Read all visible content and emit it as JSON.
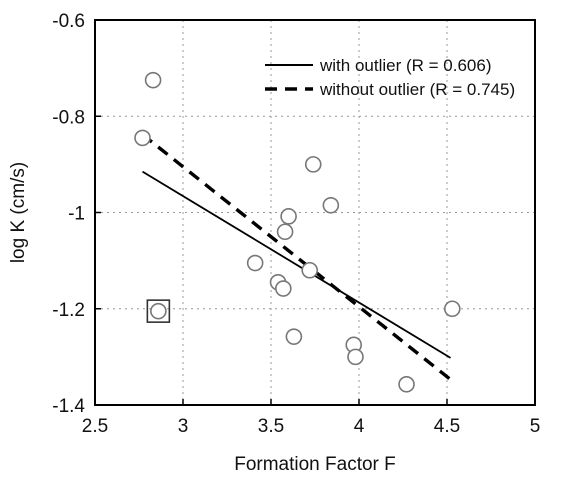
{
  "chart_data": {
    "type": "scatter",
    "xlabel": "Formation Factor F",
    "ylabel": "log K (cm/s)",
    "xlim": [
      2.5,
      5
    ],
    "ylim": [
      -1.4,
      -0.6
    ],
    "xticks": [
      "2.5",
      "3",
      "3.5",
      "4",
      "4.5",
      "5"
    ],
    "yticks": [
      "-0.6",
      "-0.8",
      "-1",
      "-1.2",
      "-1.4"
    ],
    "xtick_values": [
      2.5,
      3,
      3.5,
      4,
      4.5,
      5
    ],
    "ytick_values": [
      -0.6,
      -0.8,
      -1,
      -1.2,
      -1.4
    ],
    "grid": true,
    "legend_position": "top-right",
    "points": [
      {
        "x": 2.83,
        "y": -0.725
      },
      {
        "x": 2.77,
        "y": -0.845
      },
      {
        "x": 2.86,
        "y": -1.205
      },
      {
        "x": 3.41,
        "y": -1.105
      },
      {
        "x": 3.54,
        "y": -1.145
      },
      {
        "x": 3.57,
        "y": -1.158
      },
      {
        "x": 3.58,
        "y": -1.04
      },
      {
        "x": 3.6,
        "y": -1.008
      },
      {
        "x": 3.63,
        "y": -1.258
      },
      {
        "x": 3.72,
        "y": -1.12
      },
      {
        "x": 3.74,
        "y": -0.9
      },
      {
        "x": 3.84,
        "y": -0.985
      },
      {
        "x": 3.97,
        "y": -1.275
      },
      {
        "x": 3.98,
        "y": -1.3
      },
      {
        "x": 4.27,
        "y": -1.357
      },
      {
        "x": 4.53,
        "y": -1.2
      }
    ],
    "outlier": {
      "x": 2.86,
      "y": -1.205
    },
    "lines": [
      {
        "name": "with outlier (R = 0.606)",
        "style": "solid",
        "x": [
          2.77,
          4.52
        ],
        "y": [
          -0.915,
          -1.302
        ]
      },
      {
        "name": "without outlier (R = 0.745)",
        "style": "dashed",
        "x": [
          2.77,
          4.52
        ],
        "y": [
          -0.838,
          -1.347
        ]
      }
    ]
  }
}
